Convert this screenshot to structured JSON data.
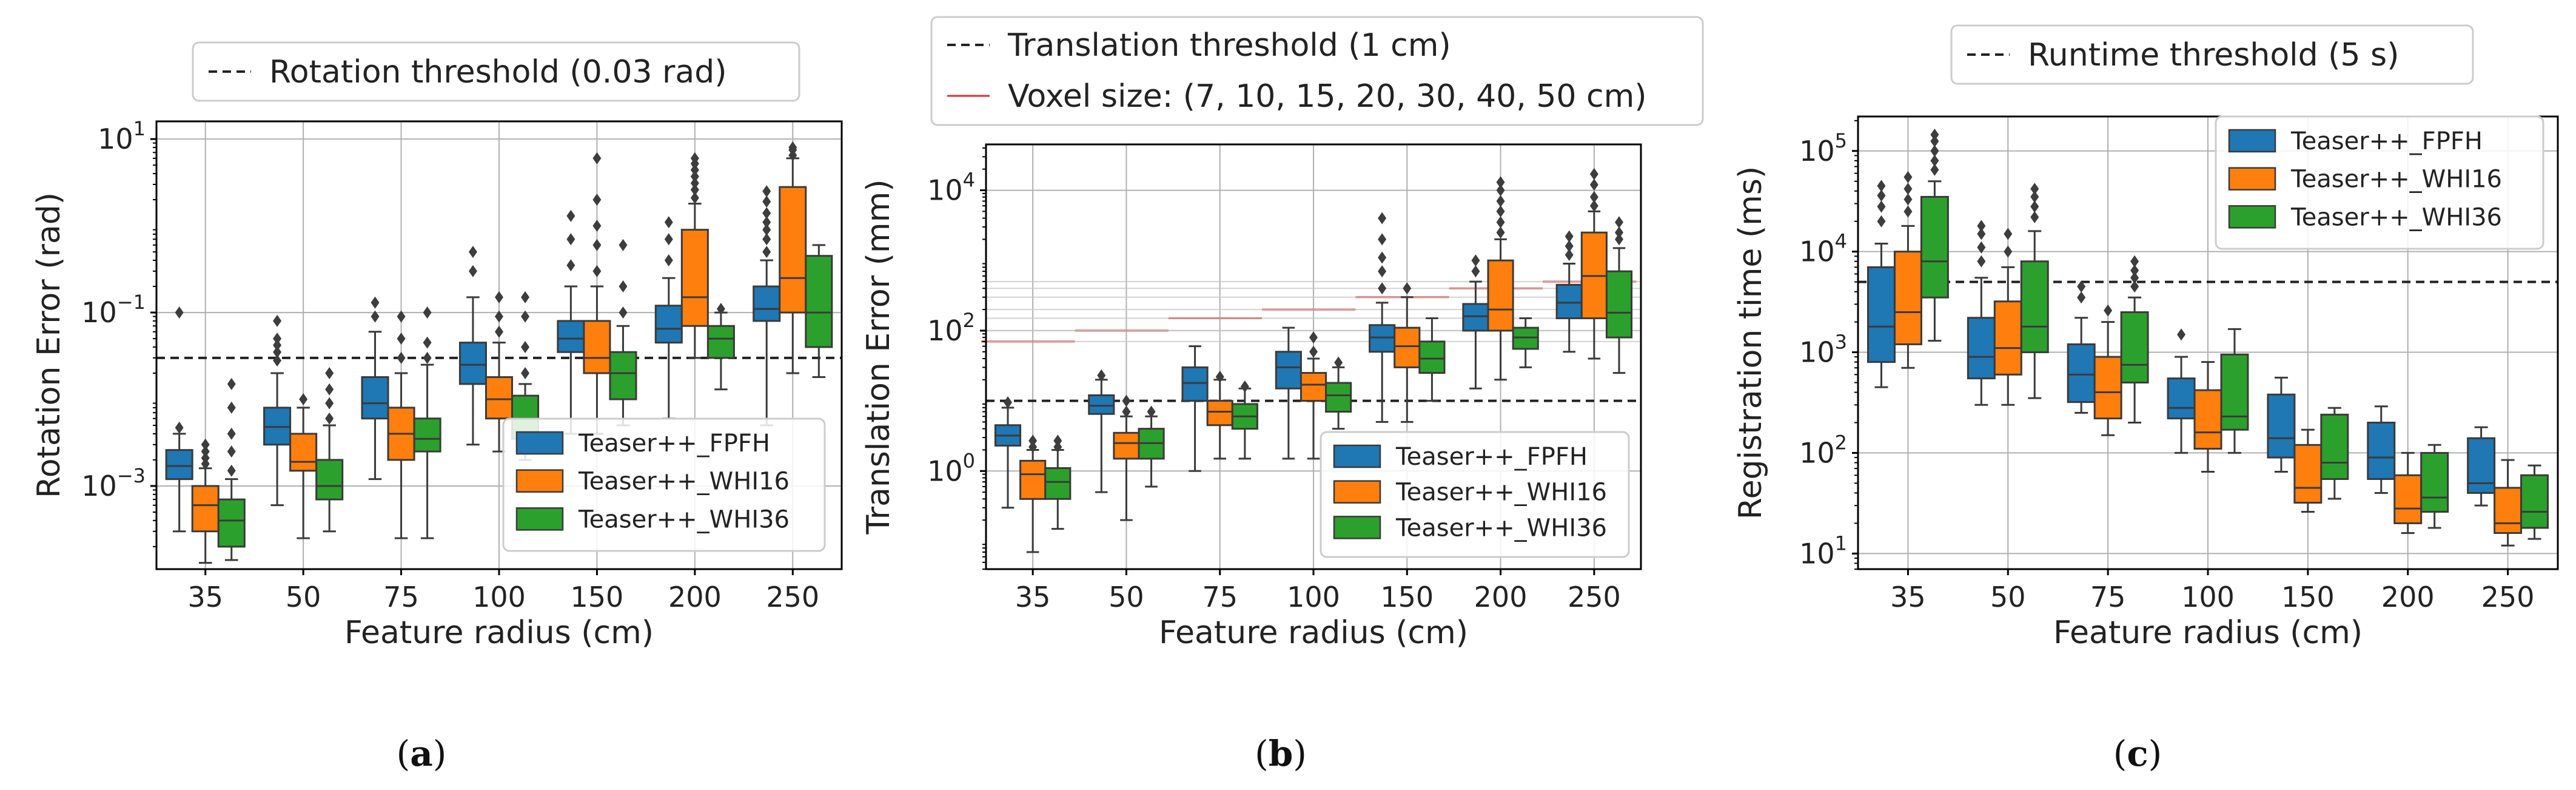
{
  "colors": {
    "FPFH": "#1f77b4",
    "WHI16": "#ff7f0e",
    "WHI36": "#2ca02c",
    "voxel": "#e03030"
  },
  "chart_data": [
    {
      "id": "a",
      "type": "box",
      "caption_letter": "a",
      "xlabel": "Feature radius (cm)",
      "ylabel": "Rotation Error (rad)",
      "yscale": "log",
      "ylim": [
        0.00011,
        16
      ],
      "yticks": [
        {
          "v": 10,
          "base": "10",
          "exp": "1"
        },
        {
          "v": 0.1,
          "base": "10",
          "exp": "−1"
        },
        {
          "v": 0.001,
          "base": "10",
          "exp": "−3"
        }
      ],
      "categories": [
        "35",
        "50",
        "75",
        "100",
        "150",
        "200",
        "250"
      ],
      "threshold": {
        "value": 0.03,
        "label": "Rotation threshold (0.03 rad)"
      },
      "legend_position": "lower-right",
      "series": [
        {
          "name": "Teaser++_FPFH",
          "key": "FPFH",
          "boxes": [
            {
              "wlo": 0.0003,
              "q1": 0.0012,
              "med": 0.0017,
              "q3": 0.0026,
              "whi": 0.004,
              "out": [
                0.0047,
                0.1
              ]
            },
            {
              "wlo": 0.0006,
              "q1": 0.003,
              "med": 0.0048,
              "q3": 0.008,
              "whi": 0.02,
              "out": [
                0.028,
                0.035,
                0.042,
                0.05,
                0.08
              ]
            },
            {
              "wlo": 0.0012,
              "q1": 0.006,
              "med": 0.009,
              "q3": 0.018,
              "whi": 0.06,
              "out": [
                0.09,
                0.13
              ]
            },
            {
              "wlo": 0.003,
              "q1": 0.015,
              "med": 0.025,
              "q3": 0.045,
              "whi": 0.15,
              "out": [
                0.3,
                0.5
              ]
            },
            {
              "wlo": 0.004,
              "q1": 0.035,
              "med": 0.05,
              "q3": 0.08,
              "whi": 0.2,
              "out": [
                0.35,
                0.7,
                1.3
              ]
            },
            {
              "wlo": 0.006,
              "q1": 0.045,
              "med": 0.065,
              "q3": 0.12,
              "whi": 0.25,
              "out": [
                0.4,
                0.7,
                1.1
              ]
            },
            {
              "wlo": 0.005,
              "q1": 0.08,
              "med": 0.11,
              "q3": 0.2,
              "whi": 0.4,
              "out": [
                0.5,
                0.7,
                0.9,
                1.1,
                1.4,
                1.9,
                2.5
              ]
            }
          ]
        },
        {
          "name": "Teaser++_WHI16",
          "key": "WHI16",
          "boxes": [
            {
              "wlo": 0.00013,
              "q1": 0.0003,
              "med": 0.0006,
              "q3": 0.001,
              "whi": 0.0016,
              "out": [
                0.0018,
                0.0021,
                0.0025,
                0.003
              ]
            },
            {
              "wlo": 0.00025,
              "q1": 0.0015,
              "med": 0.0019,
              "q3": 0.004,
              "whi": 0.008,
              "out": [
                0.01
              ]
            },
            {
              "wlo": 0.00025,
              "q1": 0.002,
              "med": 0.004,
              "q3": 0.008,
              "whi": 0.02,
              "out": [
                0.03,
                0.05,
                0.09
              ]
            },
            {
              "wlo": 0.0025,
              "q1": 0.006,
              "med": 0.01,
              "q3": 0.018,
              "whi": 0.045,
              "out": [
                0.06,
                0.09,
                0.15
              ]
            },
            {
              "wlo": 0.004,
              "q1": 0.02,
              "med": 0.03,
              "q3": 0.08,
              "whi": 0.2,
              "out": [
                0.3,
                0.6,
                1.0,
                2.0,
                6.0
              ]
            },
            {
              "wlo": 0.03,
              "q1": 0.07,
              "med": 0.15,
              "q3": 0.9,
              "whi": 1.8,
              "out": [
                2.1,
                2.6,
                3.1,
                3.7,
                4.4,
                5.2,
                6.0
              ]
            },
            {
              "wlo": 0.02,
              "q1": 0.1,
              "med": 0.25,
              "q3": 2.8,
              "whi": 6.0,
              "out": [
                6.5,
                7.5,
                8.0
              ]
            }
          ]
        },
        {
          "name": "Teaser++_WHI36",
          "key": "WHI36",
          "boxes": [
            {
              "wlo": 0.00014,
              "q1": 0.0002,
              "med": 0.0004,
              "q3": 0.0007,
              "whi": 0.0012,
              "out": [
                0.0015,
                0.0025,
                0.004,
                0.008,
                0.015
              ]
            },
            {
              "wlo": 0.0003,
              "q1": 0.0007,
              "med": 0.001,
              "q3": 0.002,
              "whi": 0.005,
              "out": [
                0.006,
                0.009,
                0.013,
                0.02
              ]
            },
            {
              "wlo": 0.00025,
              "q1": 0.0025,
              "med": 0.0035,
              "q3": 0.006,
              "whi": 0.025,
              "out": [
                0.03,
                0.045,
                0.1
              ]
            },
            {
              "wlo": 0.002,
              "q1": 0.0035,
              "med": 0.006,
              "q3": 0.011,
              "whi": 0.015,
              "out": [
                0.02,
                0.04,
                0.09,
                0.15
              ]
            },
            {
              "wlo": 0.005,
              "q1": 0.01,
              "med": 0.02,
              "q3": 0.035,
              "whi": 0.07,
              "out": [
                0.1,
                0.2,
                0.6
              ]
            },
            {
              "wlo": 0.013,
              "q1": 0.03,
              "med": 0.05,
              "q3": 0.07,
              "whi": 0.1,
              "out": [
                0.11
              ]
            },
            {
              "wlo": 0.018,
              "q1": 0.04,
              "med": 0.1,
              "q3": 0.45,
              "whi": 0.6,
              "out": []
            }
          ]
        }
      ]
    },
    {
      "id": "b",
      "type": "box",
      "caption_letter": "b",
      "xlabel": "Feature radius (cm)",
      "ylabel": "Translation Error (mm)",
      "yscale": "log",
      "ylim": [
        0.04,
        45000
      ],
      "yticks": [
        {
          "v": 10000,
          "base": "10",
          "exp": "4"
        },
        {
          "v": 100,
          "base": "10",
          "exp": "2"
        },
        {
          "v": 1,
          "base": "10",
          "exp": "0"
        }
      ],
      "categories": [
        "35",
        "50",
        "75",
        "100",
        "150",
        "200",
        "250"
      ],
      "threshold": {
        "value": 10,
        "label": "Translation threshold (1 cm)"
      },
      "voxel": {
        "label": "Voxel size: (7, 10, 15, 20, 30, 40, 50 cm)",
        "values": [
          70,
          100,
          150,
          200,
          300,
          400,
          500
        ]
      },
      "legend_position": "lower-right",
      "series": [
        {
          "name": "Teaser++_FPFH",
          "key": "FPFH",
          "boxes": [
            {
              "wlo": 0.3,
              "q1": 2.3,
              "med": 3.2,
              "q3": 4.5,
              "whi": 8,
              "out": [
                9.5
              ]
            },
            {
              "wlo": 0.5,
              "q1": 6.5,
              "med": 8.5,
              "q3": 12,
              "whi": 20,
              "out": [
                23
              ]
            },
            {
              "wlo": 1.0,
              "q1": 10,
              "med": 18,
              "q3": 30,
              "whi": 60,
              "out": []
            },
            {
              "wlo": 1.5,
              "q1": 15,
              "med": 30,
              "q3": 50,
              "whi": 110,
              "out": []
            },
            {
              "wlo": 5,
              "q1": 50,
              "med": 80,
              "q3": 120,
              "whi": 250,
              "out": [
                400,
                700,
                1100,
                2000,
                4000
              ]
            },
            {
              "wlo": 15,
              "q1": 100,
              "med": 160,
              "q3": 240,
              "whi": 500,
              "out": [
                700,
                1000
              ]
            },
            {
              "wlo": 50,
              "q1": 150,
              "med": 250,
              "q3": 450,
              "whi": 900,
              "out": [
                1200,
                1600,
                2200
              ]
            }
          ]
        },
        {
          "name": "Teaser++_WHI16",
          "key": "WHI16",
          "boxes": [
            {
              "wlo": 0.07,
              "q1": 0.4,
              "med": 0.9,
              "q3": 1.4,
              "whi": 2,
              "out": [
                2.2,
                2.7
              ]
            },
            {
              "wlo": 0.2,
              "q1": 1.5,
              "med": 2.5,
              "q3": 3.5,
              "whi": 6,
              "out": [
                7,
                10
              ]
            },
            {
              "wlo": 1.5,
              "q1": 4.5,
              "med": 7,
              "q3": 10,
              "whi": 20,
              "out": [
                22
              ]
            },
            {
              "wlo": 1.5,
              "q1": 10,
              "med": 17,
              "q3": 25,
              "whi": 40,
              "out": [
                50,
                80
              ]
            },
            {
              "wlo": 5,
              "q1": 30,
              "med": 60,
              "q3": 110,
              "whi": 300,
              "out": [
                400
              ]
            },
            {
              "wlo": 20,
              "q1": 100,
              "med": 200,
              "q3": 1000,
              "whi": 2000,
              "out": [
                2500,
                3500,
                5000,
                7000,
                10000,
                13000
              ]
            },
            {
              "wlo": 40,
              "q1": 150,
              "med": 600,
              "q3": 2500,
              "whi": 5000,
              "out": [
                6000,
                8000,
                12000,
                17000
              ]
            }
          ]
        },
        {
          "name": "Teaser++_WHI36",
          "key": "WHI36",
          "boxes": [
            {
              "wlo": 0.15,
              "q1": 0.4,
              "med": 0.7,
              "q3": 1.1,
              "whi": 2,
              "out": [
                2.2,
                2.7
              ]
            },
            {
              "wlo": 0.6,
              "q1": 1.5,
              "med": 2.5,
              "q3": 4,
              "whi": 6,
              "out": [
                7
              ]
            },
            {
              "wlo": 1.5,
              "q1": 4,
              "med": 6,
              "q3": 9,
              "whi": 15,
              "out": [
                16
              ]
            },
            {
              "wlo": 4,
              "q1": 7,
              "med": 12,
              "q3": 18,
              "whi": 30,
              "out": [
                35
              ]
            },
            {
              "wlo": 10,
              "q1": 25,
              "med": 40,
              "q3": 70,
              "whi": 150,
              "out": []
            },
            {
              "wlo": 30,
              "q1": 55,
              "med": 80,
              "q3": 110,
              "whi": 150,
              "out": []
            },
            {
              "wlo": 25,
              "q1": 80,
              "med": 180,
              "q3": 700,
              "whi": 1500,
              "out": [
                2000,
                2500,
                3500
              ]
            }
          ]
        }
      ]
    },
    {
      "id": "c",
      "type": "box",
      "caption_letter": "c",
      "xlabel": "Feature radius (cm)",
      "ylabel": "Registration time (ms)",
      "yscale": "log",
      "ylim": [
        7,
        220000
      ],
      "yticks": [
        {
          "v": 100000,
          "base": "10",
          "exp": "5"
        },
        {
          "v": 10000,
          "base": "10",
          "exp": "4"
        },
        {
          "v": 1000,
          "base": "10",
          "exp": "3"
        },
        {
          "v": 100,
          "base": "10",
          "exp": "2"
        },
        {
          "v": 10,
          "base": "10",
          "exp": "1"
        }
      ],
      "categories": [
        "35",
        "50",
        "75",
        "100",
        "150",
        "200",
        "250"
      ],
      "threshold": {
        "value": 5000,
        "label": "Runtime threshold (5 s)"
      },
      "legend_position": "upper-right",
      "series": [
        {
          "name": "Teaser++_FPFH",
          "key": "FPFH",
          "boxes": [
            {
              "wlo": 450,
              "q1": 800,
              "med": 1800,
              "q3": 7000,
              "whi": 12000,
              "out": [
                20000,
                28000,
                36000,
                45000
              ]
            },
            {
              "wlo": 300,
              "q1": 550,
              "med": 900,
              "q3": 2200,
              "whi": 5500,
              "out": [
                8000,
                11000,
                15000,
                18000
              ]
            },
            {
              "wlo": 250,
              "q1": 320,
              "med": 600,
              "q3": 1200,
              "whi": 2200,
              "out": [
                3500,
                4500
              ]
            },
            {
              "wlo": 100,
              "q1": 220,
              "med": 280,
              "q3": 550,
              "whi": 900,
              "out": [
                1500
              ]
            },
            {
              "wlo": 65,
              "q1": 90,
              "med": 140,
              "q3": 380,
              "whi": 560,
              "out": []
            },
            {
              "wlo": 40,
              "q1": 55,
              "med": 90,
              "q3": 200,
              "whi": 290,
              "out": []
            },
            {
              "wlo": 30,
              "q1": 40,
              "med": 50,
              "q3": 140,
              "whi": 180,
              "out": []
            }
          ]
        },
        {
          "name": "Teaser++_WHI16",
          "key": "WHI16",
          "boxes": [
            {
              "wlo": 700,
              "q1": 1200,
              "med": 2500,
              "q3": 10000,
              "whi": 18000,
              "out": [
                25000,
                33000,
                42000,
                55000
              ]
            },
            {
              "wlo": 300,
              "q1": 600,
              "med": 1100,
              "q3": 3200,
              "whi": 7000,
              "out": [
                10000,
                15000
              ]
            },
            {
              "wlo": 150,
              "q1": 220,
              "med": 400,
              "q3": 900,
              "whi": 2000,
              "out": [
                2600
              ]
            },
            {
              "wlo": 65,
              "q1": 110,
              "med": 160,
              "q3": 420,
              "whi": 800,
              "out": []
            },
            {
              "wlo": 26,
              "q1": 32,
              "med": 45,
              "q3": 120,
              "whi": 170,
              "out": []
            },
            {
              "wlo": 16,
              "q1": 20,
              "med": 28,
              "q3": 60,
              "whi": 100,
              "out": []
            },
            {
              "wlo": 12,
              "q1": 16,
              "med": 20,
              "q3": 45,
              "whi": 85,
              "out": []
            }
          ]
        },
        {
          "name": "Teaser++_WHI36",
          "key": "WHI36",
          "boxes": [
            {
              "wlo": 1300,
              "q1": 3500,
              "med": 8000,
              "q3": 35000,
              "whi": 50000,
              "out": [
                65000,
                80000,
                100000,
                125000,
                145000
              ]
            },
            {
              "wlo": 350,
              "q1": 1000,
              "med": 1800,
              "q3": 8000,
              "whi": 16000,
              "out": [
                22000,
                28000,
                35000,
                42000
              ]
            },
            {
              "wlo": 200,
              "q1": 500,
              "med": 750,
              "q3": 2500,
              "whi": 3500,
              "out": [
                4500,
                5500,
                6500,
                8000
              ]
            },
            {
              "wlo": 100,
              "q1": 170,
              "med": 230,
              "q3": 950,
              "whi": 1700,
              "out": []
            },
            {
              "wlo": 35,
              "q1": 55,
              "med": 80,
              "q3": 240,
              "whi": 280,
              "out": []
            },
            {
              "wlo": 18,
              "q1": 26,
              "med": 36,
              "q3": 100,
              "whi": 120,
              "out": []
            },
            {
              "wlo": 14,
              "q1": 18,
              "med": 26,
              "q3": 60,
              "whi": 75,
              "out": []
            }
          ]
        }
      ]
    }
  ]
}
